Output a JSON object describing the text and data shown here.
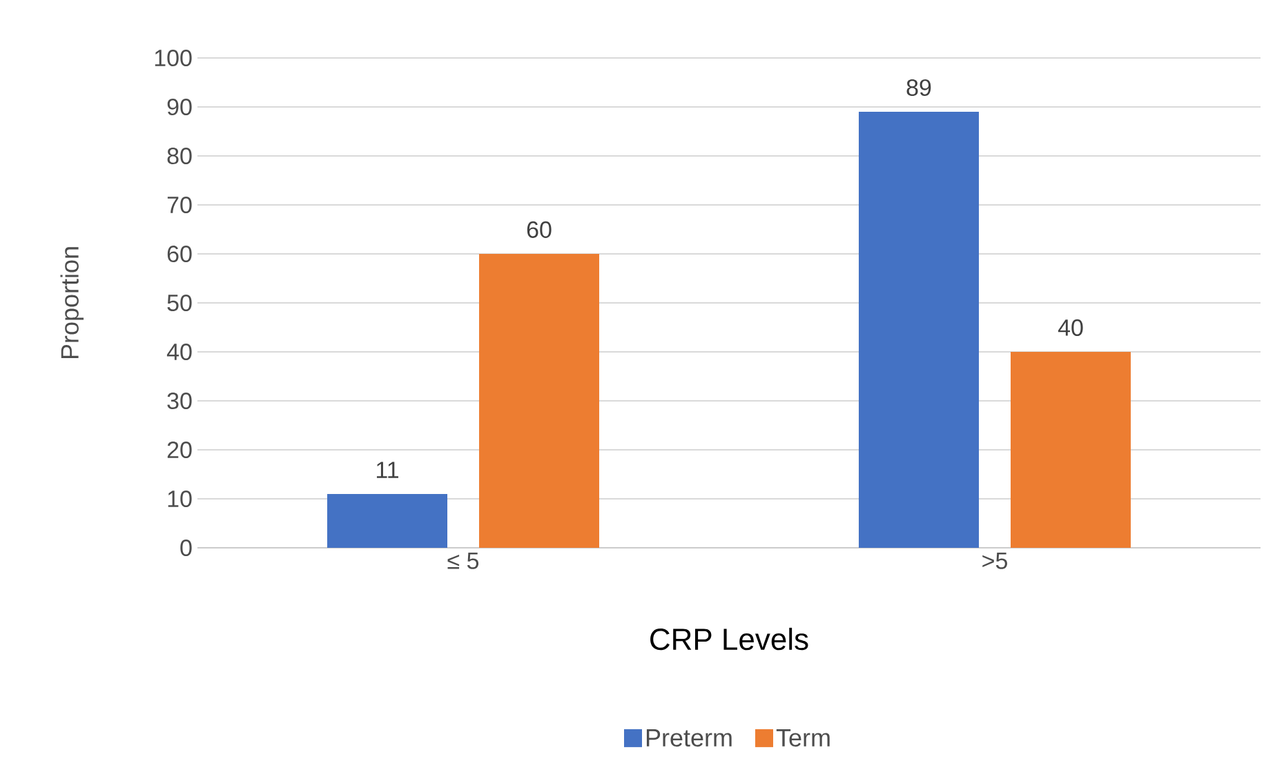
{
  "chart_data": {
    "type": "bar",
    "xlabel": "CRP Levels",
    "ylabel": "Proportion",
    "categories": [
      "≤ 5",
      ">5"
    ],
    "series": [
      {
        "name": "Preterm",
        "color": "#4472c4",
        "values": [
          11,
          89
        ]
      },
      {
        "name": "Term",
        "color": "#ed7d31",
        "values": [
          60,
          40
        ]
      }
    ],
    "ylim": [
      0,
      100
    ],
    "yticks": [
      0,
      10,
      20,
      30,
      40,
      50,
      60,
      70,
      80,
      90,
      100
    ],
    "grid": "y",
    "legend": "bottom",
    "data_labels": true
  }
}
